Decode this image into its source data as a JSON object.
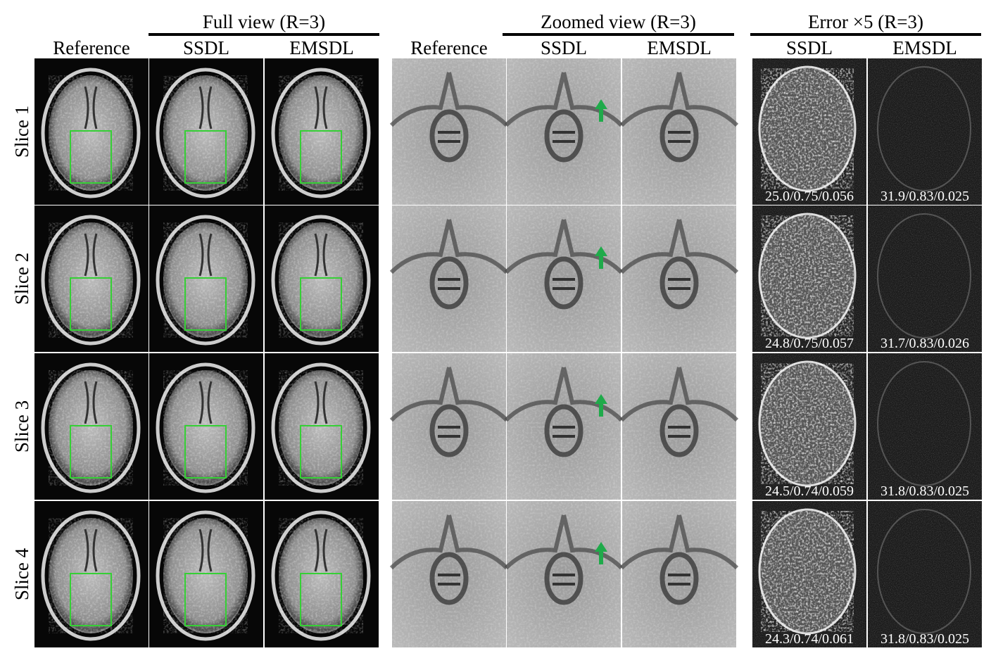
{
  "panels": [
    {
      "title": "Full view (R=3)",
      "columns": [
        "Reference",
        "SSDL",
        "EMSDL"
      ]
    },
    {
      "title": "Zoomed view (R=3)",
      "columns": [
        "Reference",
        "SSDL",
        "EMSDL"
      ]
    },
    {
      "title": "Error ×5 (R=3)",
      "columns": [
        "SSDL",
        "EMSDL"
      ]
    }
  ],
  "rows": [
    {
      "label": "Slice 1",
      "metrics": [
        "25.0/0.75/0.056",
        "31.9/0.83/0.025"
      ]
    },
    {
      "label": "Slice 2",
      "metrics": [
        "24.8/0.75/0.057",
        "31.7/0.83/0.026"
      ]
    },
    {
      "label": "Slice 3",
      "metrics": [
        "24.5/0.74/0.059",
        "31.8/0.83/0.025"
      ]
    },
    {
      "label": "Slice 4",
      "metrics": [
        "24.3/0.74/0.061",
        "31.8/0.83/0.025"
      ]
    }
  ]
}
